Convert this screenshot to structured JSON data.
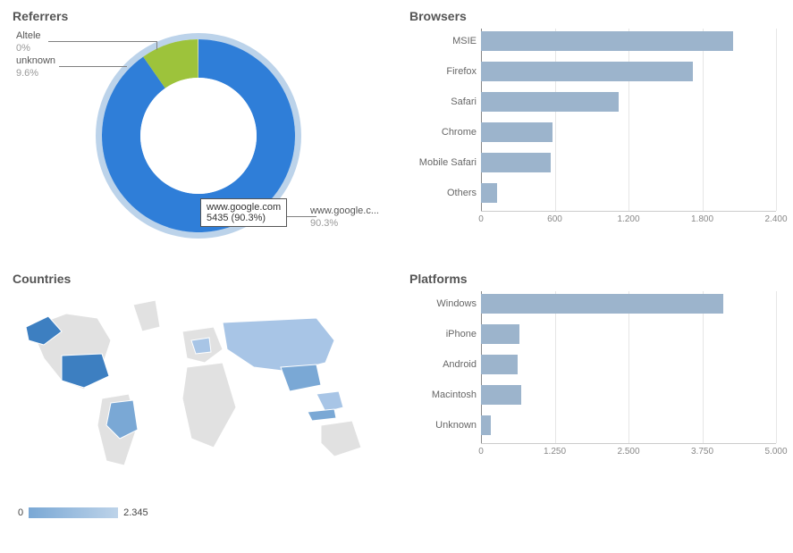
{
  "colors": {
    "bar_fill": "#9cb4cc",
    "donut_main": "#2f7ed8",
    "donut_outer": "#bcd3ea",
    "donut_green": "#9dc33b",
    "donut_sliver": "#7f7f7f",
    "grid": "#e6e6e6",
    "axis": "#cccccc",
    "text": "#555555",
    "map_land": "#e1e1e1",
    "map_stroke": "#ffffff",
    "map_highlight_low": "#a8c5e6",
    "map_highlight_mid": "#7aa8d5",
    "map_highlight_high": "#3d7fc1"
  },
  "referrers": {
    "title": "Referrers",
    "donut_outer_radius": 108,
    "donut_inner_radius": 65,
    "ring_outer_radius": 115,
    "slices": [
      {
        "label": "www.google.c...",
        "label_short": "www.google.com",
        "value": 5435,
        "pct": 90.3,
        "color": "#2f7ed8"
      },
      {
        "label": "unknown",
        "value": 578,
        "pct": 9.6,
        "color": "#9dc33b"
      },
      {
        "label": "Altele",
        "value": 0,
        "pct": 0.0,
        "color": "#7f7f7f"
      }
    ],
    "tooltip": {
      "line1": "www.google.com",
      "line2": "5435 (90.3%)"
    },
    "callouts": {
      "altele": {
        "label": "Altele",
        "value": "0%"
      },
      "unknown": {
        "label": "unknown",
        "value": "9.6%"
      },
      "google": {
        "label": "www.google.c...",
        "value": "90.3%"
      }
    }
  },
  "browsers": {
    "title": "Browsers",
    "xmax": 2400,
    "ticks": [
      0,
      600,
      1200,
      1800,
      2400
    ],
    "tick_labels": [
      "0",
      "600",
      "1.200",
      "1.800",
      "2.400"
    ],
    "bars": [
      {
        "label": "MSIE",
        "value": 2050
      },
      {
        "label": "Firefox",
        "value": 1720
      },
      {
        "label": "Safari",
        "value": 1120
      },
      {
        "label": "Chrome",
        "value": 580
      },
      {
        "label": "Mobile Safari",
        "value": 570
      },
      {
        "label": "Others",
        "value": 130
      }
    ]
  },
  "countries": {
    "title": "Countries",
    "legend_min": "0",
    "legend_max": "2.345",
    "legend_gradient_from": "#7aa8d5",
    "legend_gradient_to": "#bdd3e9"
  },
  "platforms": {
    "title": "Platforms",
    "xmax": 5000,
    "ticks": [
      0,
      1250,
      2500,
      3750,
      5000
    ],
    "tick_labels": [
      "0",
      "1.250",
      "2.500",
      "3.750",
      "5.000"
    ],
    "bars": [
      {
        "label": "Windows",
        "value": 4100
      },
      {
        "label": "iPhone",
        "value": 650
      },
      {
        "label": "Android",
        "value": 620
      },
      {
        "label": "Macintosh",
        "value": 680
      },
      {
        "label": "Unknown",
        "value": 170
      }
    ]
  }
}
